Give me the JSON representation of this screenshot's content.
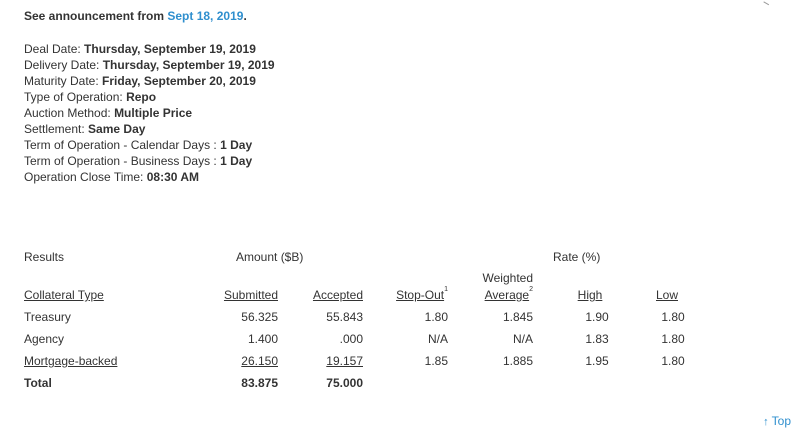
{
  "announcement": {
    "prefix": "See announcement from",
    "date_link": "Sept 18, 2019",
    "suffix": "."
  },
  "details": [
    {
      "label": "Deal Date:",
      "value": "Thursday, September 19, 2019"
    },
    {
      "label": "Delivery Date:",
      "value": "Thursday, September 19, 2019"
    },
    {
      "label": "Maturity Date:",
      "value": "Friday, September 20, 2019"
    },
    {
      "label": "Type of Operation:",
      "value": "Repo"
    },
    {
      "label": "Auction Method:",
      "value": "Multiple Price"
    },
    {
      "label": "Settlement:",
      "value": "Same Day"
    },
    {
      "label": "Term of Operation - Calendar Days :",
      "value": "1 Day"
    },
    {
      "label": "Term of Operation - Business Days :",
      "value": "1 Day"
    },
    {
      "label": "Operation Close Time:",
      "value": "08:30 AM"
    }
  ],
  "results": {
    "group_results": "Results",
    "group_amount": "Amount ($B)",
    "group_rate": "Rate (%)",
    "headers": {
      "collateral_type": "Collateral Type",
      "submitted": "Submitted",
      "accepted": "Accepted",
      "stop_out": "Stop-Out",
      "stop_out_sup": "1",
      "weighted_line1": "Weighted",
      "weighted_line2": "Average",
      "weighted_sup": "2",
      "high": "High",
      "low": "Low"
    },
    "rows": [
      {
        "type": "Treasury",
        "submitted": "56.325",
        "accepted": "55.843",
        "stop_out": "1.80",
        "weighted": "1.845",
        "high": "1.90",
        "low": "1.80"
      },
      {
        "type": "Agency",
        "submitted": "1.400",
        "accepted": ".000",
        "stop_out": "N/A",
        "weighted": "N/A",
        "high": "1.83",
        "low": "1.80"
      },
      {
        "type": "Mortgage-backed",
        "submitted": "26.150",
        "accepted": "19.157",
        "stop_out": "1.85",
        "weighted": "1.885",
        "high": "1.95",
        "low": "1.80"
      }
    ],
    "total": {
      "label": "Total",
      "submitted": "83.875",
      "accepted": "75.000"
    }
  },
  "top_link": {
    "arrow": "↑",
    "label": "Top"
  }
}
